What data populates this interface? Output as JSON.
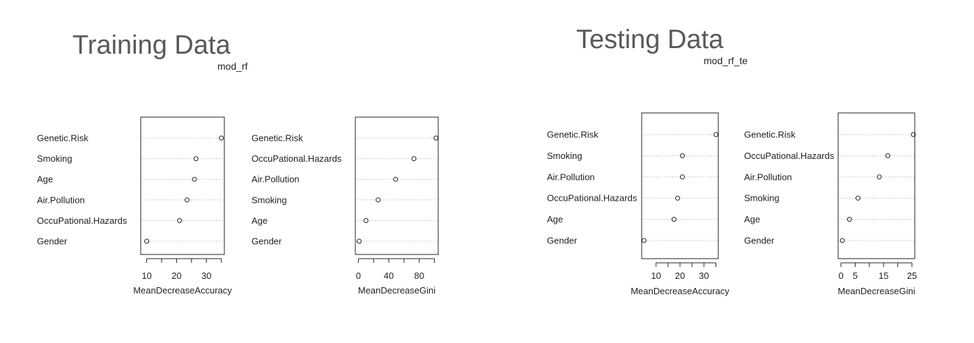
{
  "colors": {
    "heading": "#595959",
    "frame": "#222222",
    "grid": "#bbbbbb",
    "point": "#222222"
  },
  "panels": [
    {
      "heading": "Training Data",
      "subtitle": "mod_rf"
    },
    {
      "heading": "Testing Data",
      "subtitle": "mod_rf_te"
    }
  ],
  "chart_data": [
    {
      "type": "scatter",
      "variant": "dotchart",
      "group": "Training Data",
      "xlabel": "MeanDecreaseAccuracy",
      "xlim": [
        8,
        36
      ],
      "xticks": [
        10,
        15,
        20,
        25,
        30,
        35
      ],
      "xtick_labels": [
        "10",
        "",
        "20",
        "",
        "30",
        ""
      ],
      "categories": [
        "Genetic.Risk",
        "Smoking",
        "Age",
        "Air.Pollution",
        "OccuPational.Hazards",
        "Gender"
      ],
      "values": [
        35.0,
        26.5,
        26.0,
        23.5,
        21.0,
        10.0
      ],
      "grid": "dotted-horizontal"
    },
    {
      "type": "scatter",
      "variant": "dotchart",
      "group": "Training Data",
      "xlabel": "MeanDecreaseGini",
      "xlim": [
        -4,
        105
      ],
      "xticks": [
        0,
        20,
        40,
        60,
        80,
        100
      ],
      "xtick_labels": [
        "0",
        "",
        "40",
        "",
        "80",
        ""
      ],
      "categories": [
        "Genetic.Risk",
        "OccuPational.Hazards",
        "Air.Pollution",
        "Smoking",
        "Age",
        "Gender"
      ],
      "values": [
        102,
        73,
        49,
        26,
        10,
        1
      ],
      "grid": "dotted-horizontal"
    },
    {
      "type": "scatter",
      "variant": "dotchart",
      "group": "Testing Data",
      "xlabel": "MeanDecreaseAccuracy",
      "xlim": [
        4,
        36
      ],
      "xticks": [
        10,
        15,
        20,
        25,
        30,
        35
      ],
      "xtick_labels": [
        "10",
        "",
        "20",
        "",
        "30",
        ""
      ],
      "categories": [
        "Genetic.Risk",
        "Smoking",
        "Air.Pollution",
        "OccuPational.Hazards",
        "Age",
        "Gender"
      ],
      "values": [
        35.0,
        21.0,
        21.0,
        19.0,
        17.5,
        5.0
      ],
      "grid": "dotted-horizontal"
    },
    {
      "type": "scatter",
      "variant": "dotchart",
      "group": "Testing Data",
      "xlabel": "MeanDecreaseGini",
      "xlim": [
        -1,
        26
      ],
      "xticks": [
        0,
        5,
        10,
        15,
        20,
        25
      ],
      "xtick_labels": [
        "0",
        "5",
        "",
        "15",
        "",
        "25"
      ],
      "categories": [
        "Genetic.Risk",
        "OccuPational.Hazards",
        "Air.Pollution",
        "Smoking",
        "Age",
        "Gender"
      ],
      "values": [
        25.5,
        16.5,
        13.5,
        6.0,
        3.0,
        0.5
      ],
      "grid": "dotted-horizontal"
    }
  ]
}
